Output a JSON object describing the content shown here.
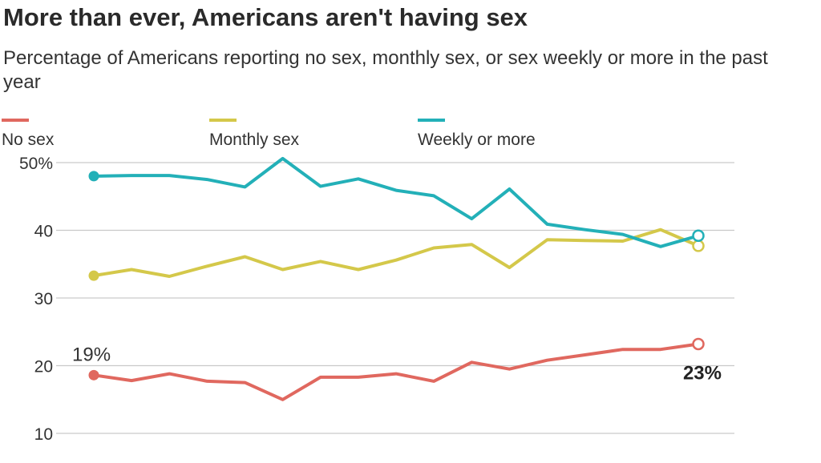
{
  "header": {
    "title": "More than ever, Americans aren't having sex",
    "subtitle": "Percentage of Americans reporting no sex, monthly sex, or sex weekly or more in the past year"
  },
  "chart_data": {
    "type": "line",
    "title": "More than ever, Americans aren't having sex",
    "subtitle": "Percentage of Americans reporting no sex, monthly sex, or sex weekly or more in the past year",
    "xlabel": "",
    "ylabel": "",
    "ylim": [
      10,
      50
    ],
    "yticks": [
      10,
      20,
      30,
      40,
      50
    ],
    "ytick_labels": [
      "10",
      "20",
      "30",
      "40",
      "50%"
    ],
    "grid": true,
    "legend_position": "top",
    "series": [
      {
        "name": "No sex",
        "color": "#e0685f",
        "values": [
          18.6,
          17.8,
          18.8,
          17.7,
          17.5,
          15.0,
          18.3,
          18.3,
          18.8,
          17.7,
          20.5,
          19.5,
          20.8,
          21.6,
          22.4,
          22.4,
          23.2
        ],
        "start_label": "19%",
        "end_label": "23%"
      },
      {
        "name": "Monthly sex",
        "color": "#d4c84a",
        "values": [
          33.3,
          34.2,
          33.2,
          34.7,
          36.1,
          34.2,
          35.4,
          34.2,
          35.6,
          37.4,
          37.9,
          34.5,
          38.6,
          38.5,
          38.4,
          40.1,
          37.7
        ]
      },
      {
        "name": "Weekly or more",
        "color": "#23b0b8",
        "values": [
          48.0,
          48.1,
          48.1,
          47.5,
          46.4,
          50.6,
          46.5,
          47.6,
          45.9,
          45.1,
          41.7,
          46.1,
          40.9,
          40.1,
          39.4,
          37.6,
          39.2
        ]
      }
    ]
  }
}
